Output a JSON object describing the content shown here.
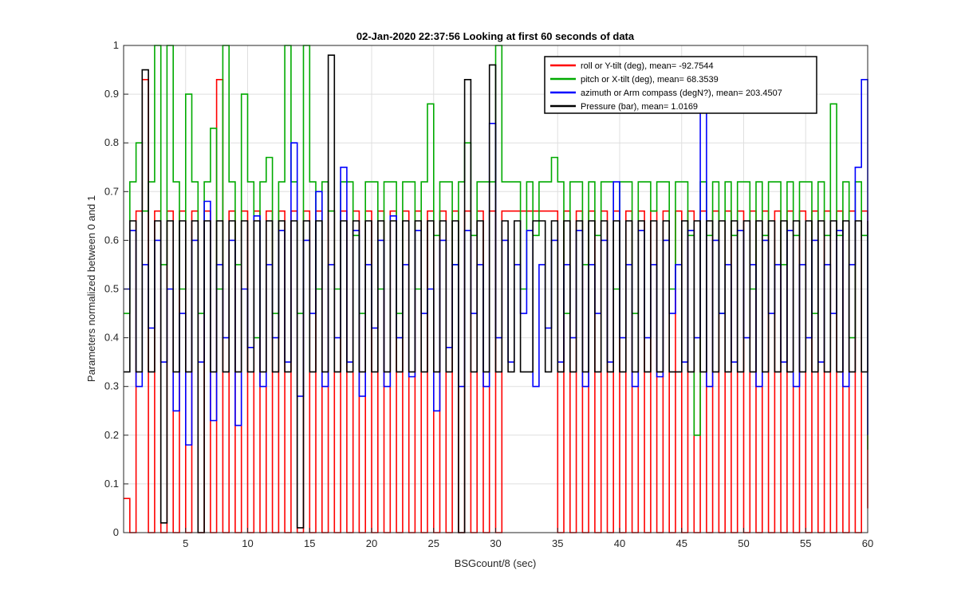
{
  "chart_data": {
    "type": "line",
    "title": "02-Jan-2020 22:37:56 Looking at first 60 seconds of data",
    "xlabel": "BSGcount/8 (sec)",
    "ylabel": "Parameters normalized between 0 and 1",
    "xlim": [
      0,
      60
    ],
    "ylim": [
      0,
      1
    ],
    "xticks": [
      5,
      10,
      15,
      20,
      25,
      30,
      35,
      40,
      45,
      50,
      55,
      60
    ],
    "yticks": [
      0,
      0.1,
      0.2,
      0.3,
      0.4,
      0.5,
      0.6,
      0.7,
      0.8,
      0.9,
      1
    ],
    "grid": true,
    "legend_position": "top-right",
    "series": [
      {
        "name": "roll or Y-tilt (deg), mean= -92.7544",
        "color": "#ff0000",
        "x": [
          0,
          0.5,
          1.0,
          1.5,
          2.0,
          2.5,
          3.0,
          3.5,
          4.0,
          4.5,
          5.0,
          5.5,
          6.0,
          6.5,
          7.0,
          7.5,
          8.0,
          8.5,
          9.0,
          9.5,
          10.0,
          10.5,
          11.0,
          11.5,
          12.0,
          12.5,
          13.0,
          13.5,
          14.0,
          14.5,
          15.0,
          15.5,
          16.0,
          16.5,
          17.0,
          17.5,
          18.0,
          18.5,
          19.0,
          19.5,
          20.0,
          20.5,
          21.0,
          21.5,
          22.0,
          22.5,
          23.0,
          23.5,
          24.0,
          24.5,
          25.0,
          25.5,
          26.0,
          26.5,
          27.0,
          27.5,
          28.0,
          28.5,
          29.0,
          29.5,
          30.0,
          30.5,
          31.0,
          31.5,
          32.0,
          32.5,
          33.0,
          33.5,
          34.0,
          34.5,
          35.0,
          35.5,
          36.0,
          36.5,
          37.0,
          37.5,
          38.0,
          38.5,
          39.0,
          39.5,
          40.0,
          40.5,
          41.0,
          41.5,
          42.0,
          42.5,
          43.0,
          43.5,
          44.0,
          44.5,
          45.0,
          45.5,
          46.0,
          46.5,
          47.0,
          47.5,
          48.0,
          48.5,
          49.0,
          49.5,
          50.0,
          50.5,
          51.0,
          51.5,
          52.0,
          52.5,
          53.0,
          53.5,
          54.0,
          54.5,
          55.0,
          55.5,
          56.0,
          56.5,
          57.0,
          57.5,
          58.0,
          58.5,
          59.0,
          59.5,
          60.0
        ],
        "values": [
          0.07,
          0.0,
          0.66,
          0.93,
          0.0,
          0.66,
          0.0,
          0.66,
          0.0,
          0.66,
          0.0,
          0.66,
          0.0,
          0.66,
          0.0,
          0.93,
          0.0,
          0.66,
          0.0,
          0.66,
          0.0,
          0.66,
          0.0,
          0.66,
          0.0,
          0.66,
          0.0,
          0.66,
          0.0,
          0.66,
          0.0,
          0.66,
          0.0,
          0.66,
          0.0,
          0.66,
          0.0,
          0.66,
          0.0,
          0.66,
          0.0,
          0.66,
          0.0,
          0.66,
          0.0,
          0.66,
          0.0,
          0.66,
          0.0,
          0.66,
          0.0,
          0.66,
          0.0,
          0.66,
          0.0,
          0.66,
          0.0,
          0.66,
          0.0,
          0.66,
          0.0,
          0.66,
          0.66,
          0.66,
          0.66,
          0.66,
          0.66,
          0.66,
          0.66,
          0.66,
          0.0,
          0.66,
          0.0,
          0.66,
          0.0,
          0.66,
          0.0,
          0.66,
          0.0,
          0.66,
          0.0,
          0.66,
          0.0,
          0.66,
          0.0,
          0.66,
          0.0,
          0.66,
          0.0,
          0.66,
          0.0,
          0.66,
          0.0,
          0.66,
          0.0,
          0.66,
          0.0,
          0.66,
          0.0,
          0.66,
          0.0,
          0.66,
          0.0,
          0.66,
          0.0,
          0.66,
          0.0,
          0.66,
          0.0,
          0.66,
          0.0,
          0.66,
          0.0,
          0.66,
          0.0,
          0.66,
          0.0,
          0.66,
          0.0,
          0.66,
          0.05
        ]
      },
      {
        "name": "pitch or X-tilt (deg), mean= 68.3539",
        "color": "#00aa00",
        "x": [
          0,
          0.5,
          1.0,
          1.5,
          2.0,
          2.5,
          3.0,
          3.5,
          4.0,
          4.5,
          5.0,
          5.5,
          6.0,
          6.5,
          7.0,
          7.5,
          8.0,
          8.5,
          9.0,
          9.5,
          10.0,
          10.5,
          11.0,
          11.5,
          12.0,
          12.5,
          13.0,
          13.5,
          14.0,
          14.5,
          15.0,
          15.5,
          16.0,
          16.5,
          17.0,
          17.5,
          18.0,
          18.5,
          19.0,
          19.5,
          20.0,
          20.5,
          21.0,
          21.5,
          22.0,
          22.5,
          23.0,
          23.5,
          24.0,
          24.5,
          25.0,
          25.5,
          26.0,
          26.5,
          27.0,
          27.5,
          28.0,
          28.5,
          29.0,
          29.5,
          30.0,
          30.5,
          31.0,
          31.5,
          32.0,
          32.5,
          33.0,
          33.5,
          34.0,
          34.5,
          35.0,
          35.5,
          36.0,
          36.5,
          37.0,
          37.5,
          38.0,
          38.5,
          39.0,
          39.5,
          40.0,
          40.5,
          41.0,
          41.5,
          42.0,
          42.5,
          43.0,
          43.5,
          44.0,
          44.5,
          45.0,
          45.5,
          46.0,
          46.5,
          47.0,
          47.5,
          48.0,
          48.5,
          49.0,
          49.5,
          50.0,
          50.5,
          51.0,
          51.5,
          52.0,
          52.5,
          53.0,
          53.5,
          54.0,
          54.5,
          55.0,
          55.5,
          56.0,
          56.5,
          57.0,
          57.5,
          58.0,
          58.5,
          59.0,
          59.5,
          60.0
        ],
        "values": [
          0.45,
          0.72,
          0.8,
          0.66,
          0.72,
          1.0,
          0.55,
          1.0,
          0.72,
          0.5,
          0.9,
          0.72,
          0.45,
          0.72,
          0.83,
          0.5,
          1.0,
          0.72,
          0.55,
          0.9,
          0.72,
          0.4,
          0.72,
          0.77,
          0.45,
          0.72,
          1.0,
          0.72,
          0.45,
          1.0,
          0.72,
          0.5,
          0.72,
          0.66,
          0.5,
          0.72,
          0.72,
          0.61,
          0.45,
          0.72,
          0.72,
          0.5,
          0.72,
          0.72,
          0.45,
          0.72,
          0.72,
          0.5,
          0.72,
          0.88,
          0.61,
          0.72,
          0.72,
          0.55,
          0.72,
          0.8,
          0.61,
          0.72,
          0.72,
          0.72,
          1.0,
          0.72,
          0.72,
          0.72,
          0.5,
          0.72,
          0.61,
          0.72,
          0.72,
          0.77,
          0.72,
          0.45,
          0.72,
          0.72,
          0.55,
          0.72,
          0.61,
          0.72,
          0.72,
          0.5,
          0.72,
          0.72,
          0.45,
          0.72,
          0.72,
          0.66,
          0.72,
          0.72,
          0.5,
          0.72,
          0.72,
          0.61,
          0.2,
          0.72,
          0.61,
          0.72,
          0.45,
          0.72,
          0.61,
          0.72,
          0.72,
          0.5,
          0.72,
          0.61,
          0.72,
          0.72,
          0.55,
          0.72,
          0.61,
          0.72,
          0.72,
          0.45,
          0.72,
          0.61,
          0.88,
          0.61,
          0.72,
          0.4,
          0.72,
          0.61,
          0.17
        ]
      },
      {
        "name": "azimuth or Arm compass (degN?), mean= 203.4507",
        "color": "#0000ff",
        "x": [
          0,
          0.5,
          1.0,
          1.5,
          2.0,
          2.5,
          3.0,
          3.5,
          4.0,
          4.5,
          5.0,
          5.5,
          6.0,
          6.5,
          7.0,
          7.5,
          8.0,
          8.5,
          9.0,
          9.5,
          10.0,
          10.5,
          11.0,
          11.5,
          12.0,
          12.5,
          13.0,
          13.5,
          14.0,
          14.5,
          15.0,
          15.5,
          16.0,
          16.5,
          17.0,
          17.5,
          18.0,
          18.5,
          19.0,
          19.5,
          20.0,
          20.5,
          21.0,
          21.5,
          22.0,
          22.5,
          23.0,
          23.5,
          24.0,
          24.5,
          25.0,
          25.5,
          26.0,
          26.5,
          27.0,
          27.5,
          28.0,
          28.5,
          29.0,
          29.5,
          30.0,
          30.5,
          31.0,
          31.5,
          32.0,
          32.5,
          33.0,
          33.5,
          34.0,
          34.5,
          35.0,
          35.5,
          36.0,
          36.5,
          37.0,
          37.5,
          38.0,
          38.5,
          39.0,
          39.5,
          40.0,
          40.5,
          41.0,
          41.5,
          42.0,
          42.5,
          43.0,
          43.5,
          44.0,
          44.5,
          45.0,
          45.5,
          46.0,
          46.5,
          47.0,
          47.5,
          48.0,
          48.5,
          49.0,
          49.5,
          50.0,
          50.5,
          51.0,
          51.5,
          52.0,
          52.5,
          53.0,
          53.5,
          54.0,
          54.5,
          55.0,
          55.5,
          56.0,
          56.5,
          57.0,
          57.5,
          58.0,
          58.5,
          59.0,
          59.5,
          60.0
        ],
        "values": [
          0.5,
          0.62,
          0.3,
          0.55,
          0.42,
          0.6,
          0.35,
          0.5,
          0.25,
          0.45,
          0.18,
          0.6,
          0.35,
          0.68,
          0.23,
          0.55,
          0.4,
          0.6,
          0.22,
          0.5,
          0.38,
          0.65,
          0.3,
          0.55,
          0.4,
          0.62,
          0.35,
          0.8,
          0.28,
          0.6,
          0.45,
          0.7,
          0.3,
          0.55,
          0.4,
          0.75,
          0.35,
          0.62,
          0.28,
          0.55,
          0.42,
          0.6,
          0.3,
          0.65,
          0.4,
          0.55,
          0.32,
          0.62,
          0.45,
          0.5,
          0.25,
          0.6,
          0.38,
          0.55,
          0.3,
          0.62,
          0.45,
          0.55,
          0.3,
          0.84,
          0.4,
          0.6,
          0.35,
          0.55,
          0.45,
          0.62,
          0.3,
          0.55,
          0.42,
          0.6,
          0.35,
          0.55,
          0.4,
          0.62,
          0.3,
          0.55,
          0.45,
          0.6,
          0.35,
          0.72,
          0.4,
          0.55,
          0.3,
          0.62,
          0.4,
          0.55,
          0.32,
          0.6,
          0.45,
          0.55,
          0.35,
          0.62,
          0.4,
          0.87,
          0.3,
          0.6,
          0.45,
          0.55,
          0.35,
          0.62,
          0.4,
          0.55,
          0.3,
          0.6,
          0.45,
          0.55,
          0.35,
          0.62,
          0.3,
          0.55,
          0.4,
          0.6,
          0.35,
          0.55,
          0.45,
          0.62,
          0.3,
          0.55,
          0.75,
          0.93,
          0.2
        ]
      },
      {
        "name": "Pressure (bar), mean= 1.0169",
        "color": "#000000",
        "x": [
          0,
          0.5,
          1.0,
          1.5,
          2.0,
          2.5,
          3.0,
          3.5,
          4.0,
          4.5,
          5.0,
          5.5,
          6.0,
          6.5,
          7.0,
          7.5,
          8.0,
          8.5,
          9.0,
          9.5,
          10.0,
          10.5,
          11.0,
          11.5,
          12.0,
          12.5,
          13.0,
          13.5,
          14.0,
          14.5,
          15.0,
          15.5,
          16.0,
          16.5,
          17.0,
          17.5,
          18.0,
          18.5,
          19.0,
          19.5,
          20.0,
          20.5,
          21.0,
          21.5,
          22.0,
          22.5,
          23.0,
          23.5,
          24.0,
          24.5,
          25.0,
          25.5,
          26.0,
          26.5,
          27.0,
          27.5,
          28.0,
          28.5,
          29.0,
          29.5,
          30.0,
          30.5,
          31.0,
          31.5,
          32.0,
          32.5,
          33.0,
          33.5,
          34.0,
          34.5,
          35.0,
          35.5,
          36.0,
          36.5,
          37.0,
          37.5,
          38.0,
          38.5,
          39.0,
          39.5,
          40.0,
          40.5,
          41.0,
          41.5,
          42.0,
          42.5,
          43.0,
          43.5,
          44.0,
          44.5,
          45.0,
          45.5,
          46.0,
          46.5,
          47.0,
          47.5,
          48.0,
          48.5,
          49.0,
          49.5,
          50.0,
          50.5,
          51.0,
          51.5,
          52.0,
          52.5,
          53.0,
          53.5,
          54.0,
          54.5,
          55.0,
          55.5,
          56.0,
          56.5,
          57.0,
          57.5,
          58.0,
          58.5,
          59.0,
          59.5,
          60.0
        ],
        "values": [
          0.33,
          0.64,
          0.33,
          0.95,
          0.33,
          0.64,
          0.02,
          0.64,
          0.33,
          0.64,
          0.33,
          0.64,
          0.0,
          0.64,
          0.33,
          0.64,
          0.33,
          0.64,
          0.33,
          0.64,
          0.33,
          0.64,
          0.33,
          0.64,
          0.33,
          0.64,
          0.33,
          0.64,
          0.01,
          0.64,
          0.33,
          0.64,
          0.33,
          0.98,
          0.33,
          0.64,
          0.33,
          0.64,
          0.33,
          0.64,
          0.33,
          0.64,
          0.33,
          0.64,
          0.33,
          0.64,
          0.33,
          0.64,
          0.33,
          0.64,
          0.33,
          0.64,
          0.33,
          0.64,
          0.0,
          0.93,
          0.33,
          0.64,
          0.33,
          0.96,
          0.33,
          0.64,
          0.33,
          0.64,
          0.33,
          0.33,
          0.64,
          0.64,
          0.33,
          0.64,
          0.33,
          0.64,
          0.33,
          0.64,
          0.33,
          0.64,
          0.33,
          0.64,
          0.33,
          0.64,
          0.33,
          0.64,
          0.33,
          0.64,
          0.33,
          0.64,
          0.33,
          0.64,
          0.33,
          0.33,
          0.64,
          0.33,
          0.64,
          0.33,
          0.64,
          0.33,
          0.64,
          0.33,
          0.64,
          0.33,
          0.64,
          0.33,
          0.64,
          0.33,
          0.64,
          0.33,
          0.64,
          0.33,
          0.64,
          0.33,
          0.64,
          0.33,
          0.64,
          0.33,
          0.64,
          0.33,
          0.64,
          0.33,
          0.64,
          0.33,
          0.64
        ]
      }
    ]
  }
}
